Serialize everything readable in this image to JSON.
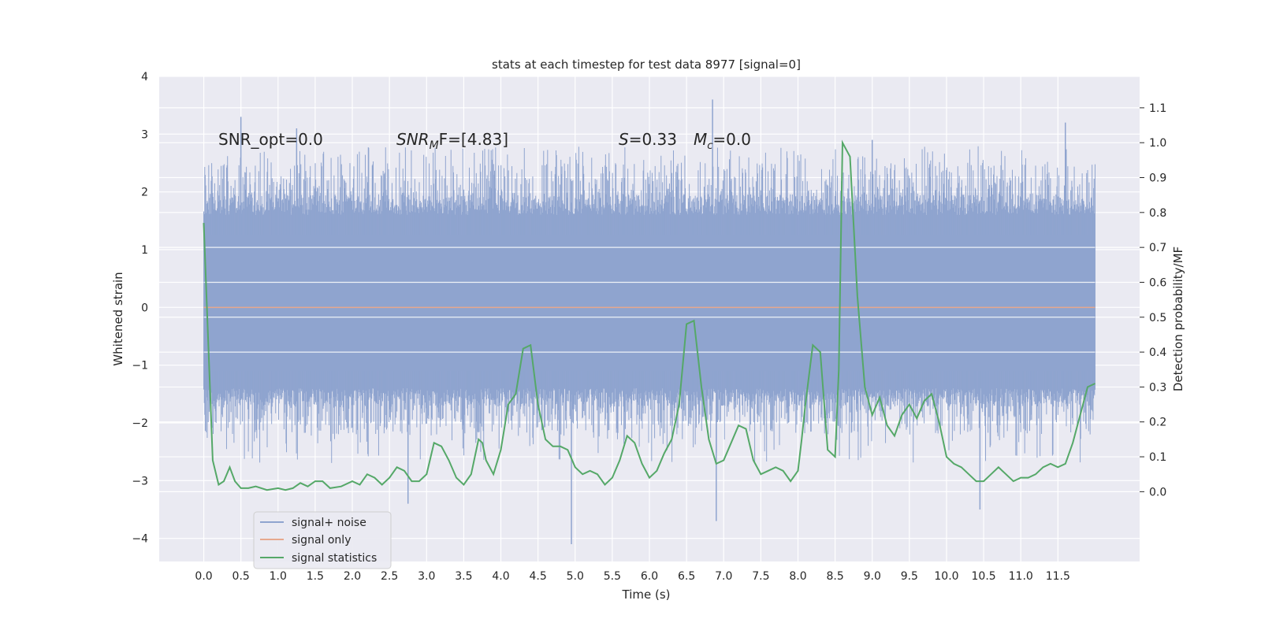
{
  "chart_data": {
    "type": "line",
    "title": "stats at each timestep for test data 8977 [signal=0]",
    "xlabel": "Time (s)",
    "ylabel": "Whitened strain",
    "y2label": "Detection probability/MF",
    "xlim": [
      -0.6,
      12.6
    ],
    "ylim": [
      -4.4,
      4.0
    ],
    "y2lim": [
      -0.2,
      1.19
    ],
    "x_ticks": [
      0.0,
      0.5,
      1.0,
      1.5,
      2.0,
      2.5,
      3.0,
      3.5,
      4.0,
      4.5,
      5.0,
      5.5,
      6.0,
      6.5,
      7.0,
      7.5,
      8.0,
      8.5,
      9.0,
      9.5,
      10.0,
      10.5,
      11.0,
      11.5
    ],
    "x_tick_labels": [
      "0.0",
      "0.5",
      "1.0",
      "1.5",
      "2.0",
      "2.5",
      "3.0",
      "3.5",
      "4.0",
      "4.5",
      "5.0",
      "5.5",
      "6.0",
      "6.5",
      "7.0",
      "7.5",
      "8.0",
      "8.5",
      "9.0",
      "9.5",
      "10.0",
      "10.5",
      "11.0",
      "11.5"
    ],
    "y_ticks": [
      4,
      3,
      2,
      1,
      0,
      -1,
      -2,
      -3,
      -4
    ],
    "y_tick_labels": [
      "4",
      "3",
      "2",
      "1",
      "0",
      "−1",
      "−2",
      "−3",
      "−4"
    ],
    "y2_ticks": [
      1.1,
      1.0,
      0.9,
      0.8,
      0.7,
      0.6,
      0.5,
      0.4,
      0.3,
      0.2,
      0.1,
      0.0
    ],
    "y2_tick_labels": [
      "1.1",
      "1.0",
      "0.9",
      "0.8",
      "0.7",
      "0.6",
      "0.5",
      "0.4",
      "0.3",
      "0.2",
      "0.1",
      "0.0"
    ],
    "legend": {
      "placement": "lower-left",
      "entries": [
        {
          "label": "signal+ noise",
          "color": "#8fa4cf"
        },
        {
          "label": "signal only",
          "color": "#e6a88e"
        },
        {
          "label": "signal statistics",
          "color": "#55a868"
        }
      ]
    },
    "annotations": {
      "snr_opt": "SNR_opt=0.0",
      "snr_mf_main": "SNR",
      "snr_mf_sub": "M",
      "snr_mf_rest": "F=[4.83]",
      "s_italic": "S",
      "s_rest": "=0.33",
      "mc_italic": "M",
      "mc_sub": "c",
      "mc_rest": "=0.0"
    },
    "noise_series": {
      "name": "signal+ noise",
      "x_range": [
        0.0,
        12.0
      ],
      "core_range": [
        -1.4,
        1.6
      ],
      "typical_range": [
        -2.2,
        2.5
      ],
      "extremes": [
        {
          "x": 0.5,
          "y": 3.3
        },
        {
          "x": 1.25,
          "y": 3.1
        },
        {
          "x": 6.85,
          "y": 3.6
        },
        {
          "x": 11.6,
          "y": 3.2
        },
        {
          "x": 4.95,
          "y": -4.1
        },
        {
          "x": 6.9,
          "y": -3.7
        },
        {
          "x": 2.75,
          "y": -3.4
        },
        {
          "x": 10.45,
          "y": -3.5
        },
        {
          "x": 9.0,
          "y": 2.9
        }
      ],
      "color": "#8fa4cf"
    },
    "signal_only": {
      "name": "signal only",
      "x": [
        0.0,
        12.0
      ],
      "y": [
        0.0,
        0.0
      ],
      "color": "#e6a88e"
    },
    "statistics": {
      "name": "signal statistics",
      "color": "#55a868",
      "x": [
        0.0,
        0.12,
        0.2,
        0.27,
        0.35,
        0.42,
        0.5,
        0.6,
        0.7,
        0.85,
        1.0,
        1.1,
        1.2,
        1.3,
        1.4,
        1.5,
        1.6,
        1.7,
        1.85,
        2.0,
        2.1,
        2.2,
        2.3,
        2.4,
        2.5,
        2.6,
        2.7,
        2.8,
        2.9,
        3.0,
        3.1,
        3.2,
        3.3,
        3.4,
        3.5,
        3.6,
        3.7,
        3.75,
        3.8,
        3.9,
        4.0,
        4.1,
        4.2,
        4.3,
        4.4,
        4.5,
        4.6,
        4.7,
        4.8,
        4.9,
        5.0,
        5.1,
        5.2,
        5.3,
        5.4,
        5.5,
        5.6,
        5.7,
        5.8,
        5.9,
        6.0,
        6.1,
        6.2,
        6.3,
        6.4,
        6.5,
        6.6,
        6.7,
        6.8,
        6.9,
        7.0,
        7.1,
        7.2,
        7.3,
        7.4,
        7.5,
        7.6,
        7.7,
        7.8,
        7.9,
        8.0,
        8.05,
        8.1,
        8.2,
        8.3,
        8.4,
        8.5,
        8.55,
        8.6,
        8.7,
        8.8,
        8.9,
        9.0,
        9.1,
        9.2,
        9.3,
        9.4,
        9.5,
        9.6,
        9.7,
        9.8,
        9.9,
        10.0,
        10.1,
        10.2,
        10.3,
        10.4,
        10.5,
        10.6,
        10.7,
        10.8,
        10.9,
        11.0,
        11.1,
        11.2,
        11.3,
        11.4,
        11.5,
        11.6,
        11.7,
        11.8,
        11.9,
        12.0
      ],
      "y": [
        0.77,
        0.09,
        0.02,
        0.03,
        0.07,
        0.03,
        0.01,
        0.01,
        0.015,
        0.005,
        0.01,
        0.005,
        0.01,
        0.025,
        0.015,
        0.03,
        0.03,
        0.01,
        0.015,
        0.03,
        0.02,
        0.05,
        0.04,
        0.02,
        0.04,
        0.07,
        0.06,
        0.03,
        0.03,
        0.05,
        0.14,
        0.13,
        0.09,
        0.04,
        0.02,
        0.05,
        0.15,
        0.14,
        0.09,
        0.05,
        0.12,
        0.25,
        0.28,
        0.41,
        0.42,
        0.25,
        0.15,
        0.13,
        0.13,
        0.12,
        0.07,
        0.05,
        0.06,
        0.05,
        0.02,
        0.04,
        0.09,
        0.16,
        0.14,
        0.08,
        0.04,
        0.06,
        0.11,
        0.15,
        0.25,
        0.48,
        0.49,
        0.3,
        0.15,
        0.08,
        0.09,
        0.14,
        0.19,
        0.18,
        0.09,
        0.05,
        0.06,
        0.07,
        0.06,
        0.03,
        0.06,
        0.15,
        0.25,
        0.42,
        0.4,
        0.12,
        0.1,
        0.35,
        1.0,
        0.96,
        0.56,
        0.3,
        0.22,
        0.27,
        0.19,
        0.16,
        0.22,
        0.25,
        0.21,
        0.26,
        0.28,
        0.2,
        0.1,
        0.08,
        0.07,
        0.05,
        0.03,
        0.03,
        0.05,
        0.07,
        0.05,
        0.03,
        0.04,
        0.04,
        0.05,
        0.07,
        0.08,
        0.07,
        0.08,
        0.14,
        0.22,
        0.3,
        0.31
      ]
    }
  }
}
